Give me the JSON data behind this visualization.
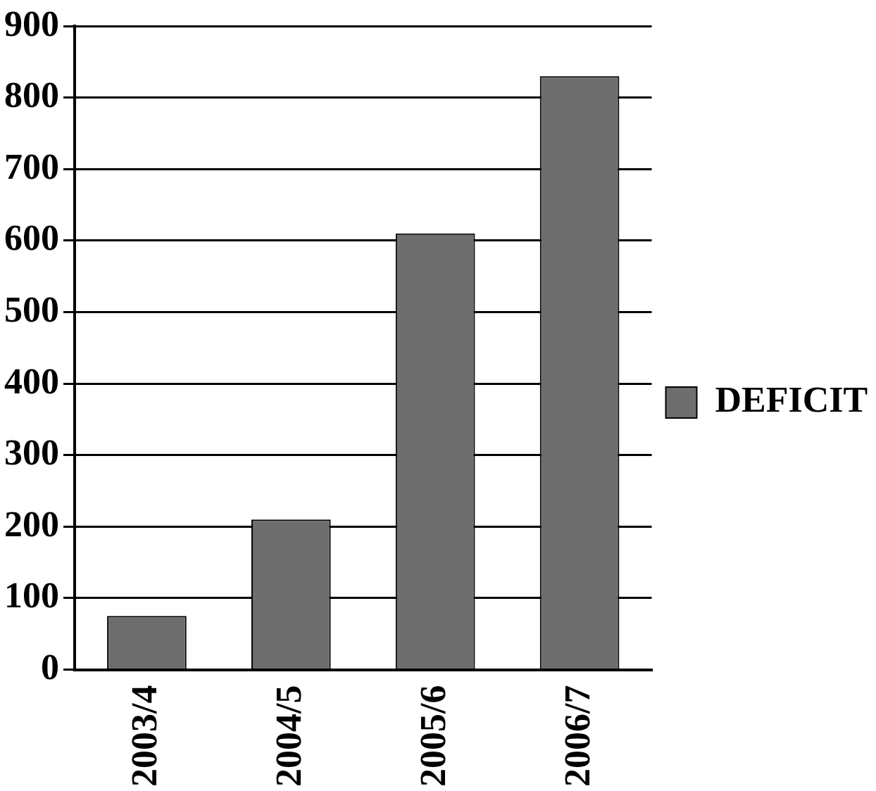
{
  "chart_data": {
    "type": "bar",
    "categories": [
      "2003/4",
      "2004/5",
      "2005/6",
      "2006/7"
    ],
    "series": [
      {
        "name": "DEFICIT",
        "color": "#6e6e6e",
        "values": [
          75,
          210,
          610,
          830
        ]
      }
    ],
    "ylim": [
      0,
      900
    ],
    "yticks": [
      0,
      100,
      200,
      300,
      400,
      500,
      600,
      700,
      800,
      900
    ],
    "grid": "y",
    "legend": "right"
  }
}
